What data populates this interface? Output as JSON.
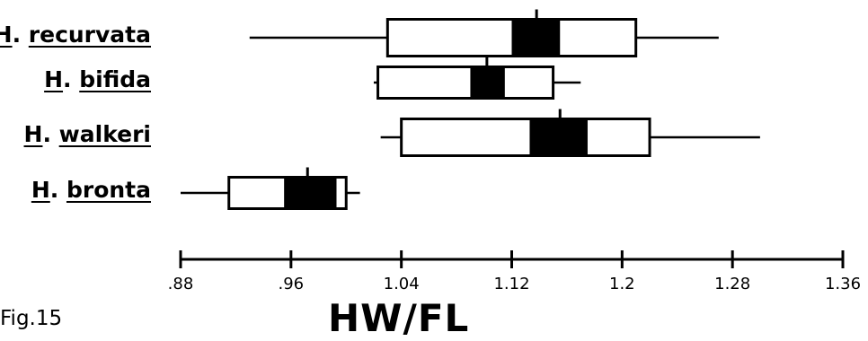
{
  "figure_label": "Fig.15",
  "chart_data": {
    "type": "box",
    "xlabel": "HW/FL",
    "xlim": [
      0.88,
      1.36
    ],
    "xticks": [
      0.88,
      0.96,
      1.04,
      1.12,
      1.2,
      1.28,
      1.36
    ],
    "xtick_labels": [
      ".88",
      ".96",
      "1.04",
      "1.12",
      "1.2",
      "1.28",
      "1.36"
    ],
    "series": [
      {
        "genus": "H",
        "epithet": "recurvata",
        "range": [
          0.93,
          1.27
        ],
        "box": [
          1.03,
          1.21
        ],
        "inner": [
          1.12,
          1.155
        ],
        "mean": 1.138
      },
      {
        "genus": "H",
        "epithet": "bifida",
        "range": [
          1.02,
          1.17
        ],
        "box": [
          1.023,
          1.15
        ],
        "inner": [
          1.09,
          1.115
        ],
        "mean": 1.102
      },
      {
        "genus": "H",
        "epithet": "walkeri",
        "range": [
          1.025,
          1.3
        ],
        "box": [
          1.04,
          1.22
        ],
        "inner": [
          1.133,
          1.175
        ],
        "mean": 1.155
      },
      {
        "genus": "H",
        "epithet": "bronta",
        "range": [
          0.88,
          1.01
        ],
        "box": [
          0.915,
          1.0
        ],
        "inner": [
          0.955,
          0.993
        ],
        "mean": 0.972
      }
    ]
  }
}
